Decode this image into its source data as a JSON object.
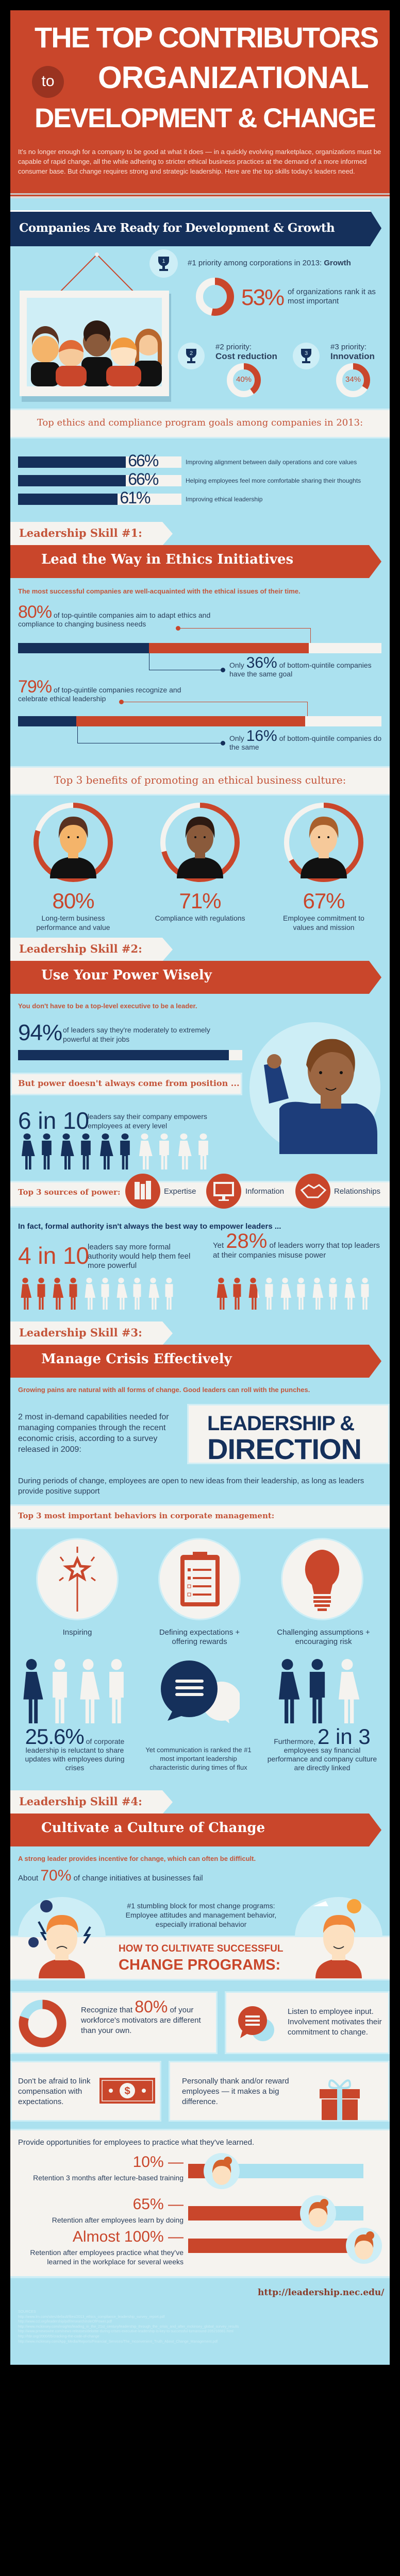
{
  "header": {
    "title_line1": "THE TOP CONTRIBUTORS",
    "to": "to",
    "title_line2": "ORGANIZATIONAL",
    "title_line3": "DEVELOPMENT & CHANGE",
    "intro": "It's no longer enough for a company to be good at what it does — in a quickly evolving marketplace, organizations must be capable of rapid change, all the while adhering to stricter ethical business practices at the demand of a more informed consumer base. But change requires strong and strategic leadership. Here are the top skills today's leaders need."
  },
  "colors": {
    "orange": "#c9462b",
    "navy": "#15305b",
    "light_blue": "#abe1ef",
    "off_white": "#f5f3ef"
  },
  "growth": {
    "banner": "Companies Are Ready for Development & Growth",
    "p1": {
      "trophy": "1",
      "text": "#1 priority among corporations in 2013: ",
      "bold": "Growth",
      "pct": "53%",
      "value": 53,
      "desc": "of organizations rank it as most important"
    },
    "p2": {
      "trophy": "2",
      "label": "#2 priority:",
      "bold": "Cost reduction",
      "pct": "40%",
      "value": 40
    },
    "p3": {
      "trophy": "3",
      "label": "#3 priority:",
      "bold": "Innovation",
      "pct": "34%",
      "value": 34
    }
  },
  "goals": {
    "title": "Top ethics and compliance program goals among companies in 2013:",
    "items": [
      {
        "pct": "66%",
        "value": 66,
        "label": "Improving alignment between daily operations and core values"
      },
      {
        "pct": "66%",
        "value": 66,
        "label": "Helping employees feel more comfortable sharing their thoughts"
      },
      {
        "pct": "61%",
        "value": 61,
        "label": "Improving ethical leadership"
      }
    ]
  },
  "skill1": {
    "tag": "Leadership Skill #1:",
    "title": "Lead the Way in Ethics Initiatives",
    "subtitle": "The most successful companies are well-acquainted with the ethical issues of their time.",
    "stat1": {
      "pct": "80%",
      "value": 80,
      "text": "of top-quintile companies aim to adapt ethics and compliance to changing business needs",
      "only": "Only",
      "cmp_pct": "36%",
      "cmp_value": 36,
      "cmp_text": "of bottom-quintile companies have the same goal"
    },
    "stat2": {
      "pct": "79%",
      "value": 79,
      "text": "of top-quintile companies recognize and celebrate ethical leadership",
      "only": "Only",
      "cmp_pct": "16%",
      "cmp_value": 16,
      "cmp_text": "of bottom-quintile companies do the same"
    },
    "benefits_title": "Top 3 benefits of promoting an ethical business culture:",
    "benefits": [
      {
        "pct": "80%",
        "value": 80,
        "label": "Long-term business performance and value"
      },
      {
        "pct": "71%",
        "value": 71,
        "label": "Compliance with regulations"
      },
      {
        "pct": "67%",
        "value": 67,
        "label": "Employee commitment to values and mission"
      }
    ]
  },
  "skill2": {
    "tag": "Leadership Skill #2:",
    "title": "Use Your Power Wisely",
    "subtitle": "You don't have to be a top-level executive to be a leader.",
    "stat94": {
      "pct": "94%",
      "value": 94,
      "text": "of leaders say they're moderately to extremely powerful at their jobs"
    },
    "but": "But power doesn't always come from position ...",
    "six": {
      "big": "6 in 10",
      "text": "leaders say their company empowers employees at every level",
      "filled": 6,
      "total": 10
    },
    "sources_title": "Top 3 sources of power:",
    "sources": [
      "Expertise",
      "Information",
      "Relationships"
    ],
    "infact": "In fact, formal authority isn't always the best way to empower leaders ...",
    "four": {
      "big": "4 in 10",
      "text": "leaders say more formal authority would help them feel more powerful",
      "filled": 4,
      "total": 10
    },
    "yet": {
      "pre": "Yet",
      "pct": "28%",
      "value": 28,
      "text": "of leaders worry that top leaders at their companies misuse power",
      "filled": 2.8,
      "total": 10
    }
  },
  "skill3": {
    "tag": "Leadership Skill #3:",
    "title": "Manage Crisis Effectively",
    "subtitle": "Growing pains are natural with all forms of change. Good leaders can roll with the punches.",
    "capabilities": "2 most in-demand capabilities needed for managing companies through the recent economic crisis, according to a survey released in 2009:",
    "box_line1": "LEADERSHIP &",
    "box_line2": "DIRECTION",
    "during": "During periods of change, employees are open to new ideas from their leadership, as long as leaders provide positive support",
    "behaviors_title": "Top 3 most important behaviors in corporate management:",
    "behaviors": [
      "Inspiring",
      "Defining expectations + offering rewards",
      "Challenging assumptions + encouraging risk"
    ],
    "s1": {
      "pct": "25.6%",
      "value": 25.6,
      "text": "of corporate leadership is reluctant to share updates with employees during crises",
      "filled": 1,
      "total": 4
    },
    "s2": {
      "text": "Yet communication is ranked the #1 most important leadership characteristic during times of flux"
    },
    "s3": {
      "pre": "Furthermore,",
      "big": "2 in 3",
      "text": "employees say financial performance and company culture are directly linked",
      "filled": 2,
      "total": 3
    }
  },
  "skill4": {
    "tag": "Leadership Skill #4:",
    "title": "Cultivate a Culture of Change",
    "subtitle": "A strong leader provides incentive for change, which can often be difficult.",
    "about": {
      "pre": "About",
      "pct": "70%",
      "value": 70,
      "text": "of change initiatives at businesses fail"
    },
    "stumbling": "#1 stumbling block for most change programs: Employee attitudes and management behavior, especially irrational behavior",
    "how_line1": "HOW TO CULTIVATE SUCCESSFUL",
    "how_line2": "CHANGE PROGRAMS:",
    "tip1": {
      "pre": "Recognize that",
      "pct": "80%",
      "value": 80,
      "text": "of your workforce's motivators are different than your own."
    },
    "tip2": "Listen to employee input. Involvement motivates their commitment to change.",
    "tip3": "Don't be afraid to link compensation with expectations.",
    "tip4": "Personally thank and/or reward employees — it makes a big difference.",
    "provide": "Provide opportunities for employees to practice what they've learned.",
    "retention": [
      {
        "pct": "10% —",
        "value": 10,
        "label": "Retention 3 months after lecture-based training"
      },
      {
        "pct": "65% —",
        "value": 65,
        "label": "Retention after employees learn by doing"
      },
      {
        "pct": "Almost 100% —",
        "value": 100,
        "label": "Retention after employees practice what they've learned in the workplace for several weeks"
      }
    ]
  },
  "footer": {
    "url": "http://leadership.nec.edu/",
    "sources_label": "SOURCES",
    "sources": [
      "http://www.lrn.com/sites/default/files/2013_ethics_compliance_leadership_survey_report.pdf",
      "http://www.ccl.org/leadership/pdf/research/roleOfPower.pdf",
      "http://www.mckinsey.com/insights/leading_in_the_21st_century/leadership_through_the_crisis_and_after_mckinsey_global_survey_results",
      "http://www.prnewswire.com/news-releases/deloitte-during-crises-executive-leadership-is-key-to-successful-turnaround-205216981.html",
      "http://hbr.org/2000/05/cracking-the-code-of-change",
      "http://www.mckinsey.com/App_Media/Reports/Financial_Services/The_Inconvenient_Truth_About_Change_Management.pdf"
    ]
  }
}
